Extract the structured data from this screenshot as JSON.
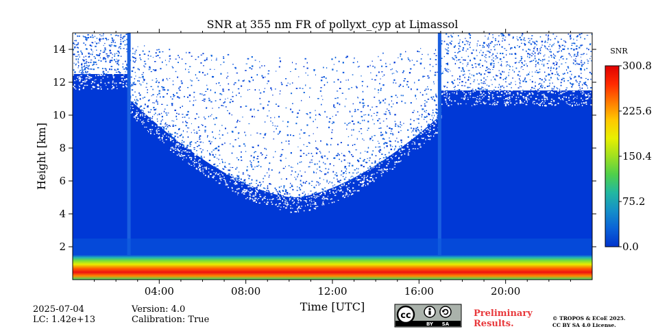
{
  "chart_data": {
    "type": "heatmap",
    "title": "SNR at 355 nm FR of pollyxt_cyp at Limassol",
    "xlabel": "Time [UTC]",
    "ylabel": "Height [km]",
    "x_range_hours": [
      0,
      24
    ],
    "y_range_km": [
      0,
      15
    ],
    "x_tick_labels": [
      "04:00",
      "08:00",
      "12:00",
      "16:00",
      "20:00"
    ],
    "x_tick_hours": [
      4,
      8,
      12,
      16,
      20
    ],
    "y_tick_labels": [
      "2",
      "4",
      "6",
      "8",
      "10",
      "12",
      "14"
    ],
    "y_tick_values": [
      2,
      4,
      6,
      8,
      10,
      12,
      14
    ],
    "colorbar": {
      "label": "SNR",
      "min": 0.0,
      "max": 300.8,
      "tick_labels": [
        "0.0",
        "75.2",
        "150.4",
        "225.6",
        "300.8"
      ],
      "tick_values": [
        0.0,
        75.2,
        150.4,
        225.6,
        300.8
      ],
      "colormap": [
        "#0033cc",
        "#0a62d8",
        "#1590c8",
        "#22b8a0",
        "#4fd04a",
        "#a0e020",
        "#e8f000",
        "#ffc800",
        "#ff7a00",
        "#ff2a00",
        "#e00000"
      ]
    },
    "gaps_hours": [
      2.6,
      16.95
    ],
    "signal_limit_km": {
      "night_early": 12.5,
      "night_late": 11.5,
      "midday_min": 5.0
    },
    "high_snr_layer_km": [
      0.2,
      1.2
    ]
  },
  "info": {
    "date": "2025-07-04",
    "lc": "LC: 1.42e+13",
    "version": "Version: 4.0",
    "calibration": "Calibration: True"
  },
  "license": {
    "cc_text": "cc",
    "by_text": "BY",
    "sa_text": "SA",
    "preliminary_line1": "Preliminary",
    "preliminary_line2": "Results.",
    "copyright_line1": "© TROPOS & ECoE 2025.",
    "copyright_line2": "CC BY SA 4.0 License."
  },
  "colors": {
    "low_snr": "#0038d6",
    "preliminary": "#e8383b"
  }
}
